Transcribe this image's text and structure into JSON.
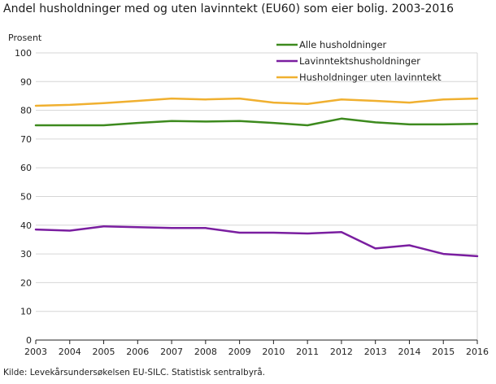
{
  "title": "Andel husholdninger med og uten lavinntekt (EU60) som eier bolig. 2003-2016",
  "source": "Kilde: Levekårsundersøkelsen EU-SILC. Statistisk sentralbyrå.",
  "chart_data": {
    "type": "line",
    "title": "Andel husholdninger med og uten lavinntekt (EU60) som eier bolig. 2003-2016",
    "xlabel": "",
    "ylabel": "Prosent",
    "x": [
      "2003",
      "2004",
      "2005",
      "2006",
      "2007",
      "2008",
      "2009",
      "2010",
      "2011",
      "2012",
      "2013",
      "2014",
      "2015",
      "2016"
    ],
    "ylim": [
      0,
      100
    ],
    "yticks": [
      0,
      10,
      20,
      30,
      40,
      50,
      60,
      70,
      80,
      90,
      100
    ],
    "grid": "horizontal",
    "legend": "top-right",
    "series": [
      {
        "name": "Alle husholdninger",
        "color": "#3d8a1e",
        "values": [
          74.8,
          74.8,
          74.8,
          75.6,
          76.3,
          76.1,
          76.3,
          75.6,
          74.8,
          77.1,
          75.8,
          75.1,
          75.1,
          75.3
        ]
      },
      {
        "name": "Lavinntektshusholdninger",
        "color": "#7a1ea0",
        "values": [
          38.5,
          38.1,
          39.6,
          39.3,
          39.0,
          39.0,
          37.4,
          37.4,
          37.1,
          37.6,
          31.9,
          33.0,
          30.0,
          29.2
        ]
      },
      {
        "name": "Husholdninger uten lavinntekt",
        "color": "#f0b030",
        "values": [
          81.6,
          81.9,
          82.5,
          83.3,
          84.1,
          83.8,
          84.1,
          82.7,
          82.2,
          83.8,
          83.3,
          82.7,
          83.8,
          84.1
        ]
      }
    ]
  }
}
